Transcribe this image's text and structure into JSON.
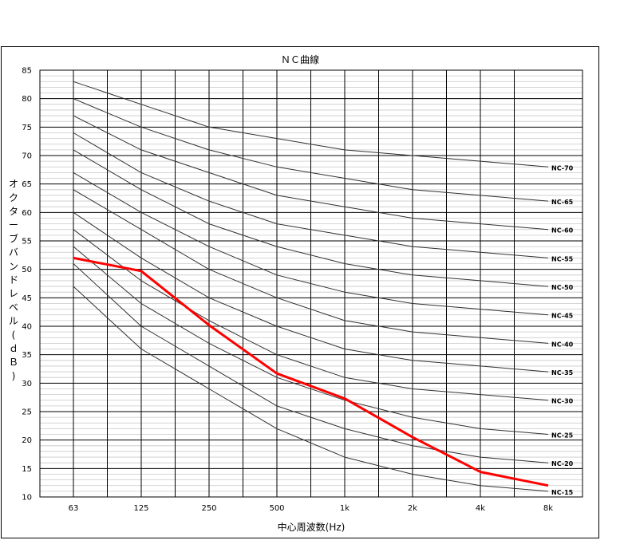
{
  "chart_data": {
    "type": "line",
    "title": "ＮＣ曲線",
    "xlabel": "中心周波数(Hz)",
    "ylabel": "オクターブバンドレベル(ｄＢ)",
    "categories": [
      "63",
      "125",
      "250",
      "500",
      "1k",
      "2k",
      "4k",
      "8k"
    ],
    "ylim": [
      10,
      85
    ],
    "yticks": [
      10,
      15,
      20,
      25,
      30,
      35,
      40,
      45,
      50,
      55,
      60,
      65,
      70,
      75,
      80,
      85
    ],
    "grid": true,
    "series": [
      {
        "name": "NC-70",
        "values": [
          83,
          79,
          75,
          73,
          71,
          70,
          69,
          68
        ]
      },
      {
        "name": "NC-65",
        "values": [
          80,
          75,
          71,
          68,
          66,
          64,
          63,
          62
        ]
      },
      {
        "name": "NC-60",
        "values": [
          77,
          71,
          67,
          63,
          61,
          59,
          58,
          57
        ]
      },
      {
        "name": "NC-55",
        "values": [
          74,
          67,
          62,
          58,
          56,
          54,
          53,
          52
        ]
      },
      {
        "name": "NC-50",
        "values": [
          71,
          64,
          58,
          54,
          51,
          49,
          48,
          47
        ]
      },
      {
        "name": "NC-45",
        "values": [
          67,
          60,
          54,
          49,
          46,
          44,
          43,
          42
        ]
      },
      {
        "name": "NC-40",
        "values": [
          64,
          57,
          50,
          45,
          41,
          39,
          38,
          37
        ]
      },
      {
        "name": "NC-35",
        "values": [
          60,
          52,
          45,
          40,
          36,
          34,
          33,
          32
        ]
      },
      {
        "name": "NC-30",
        "values": [
          57,
          48,
          41,
          35,
          31,
          29,
          28,
          27
        ]
      },
      {
        "name": "NC-25",
        "values": [
          54,
          44,
          37,
          31,
          27,
          24,
          22,
          21
        ]
      },
      {
        "name": "NC-20",
        "values": [
          51,
          40,
          33,
          26,
          22,
          19,
          17,
          16
        ]
      },
      {
        "name": "NC-15",
        "values": [
          47,
          36,
          29,
          22,
          17,
          14,
          12,
          11
        ]
      },
      {
        "values": [
          52,
          49.7,
          40.2,
          31.7,
          27.3,
          20.5,
          14.4,
          12
        ],
        "color": "#ff0000"
      }
    ]
  }
}
